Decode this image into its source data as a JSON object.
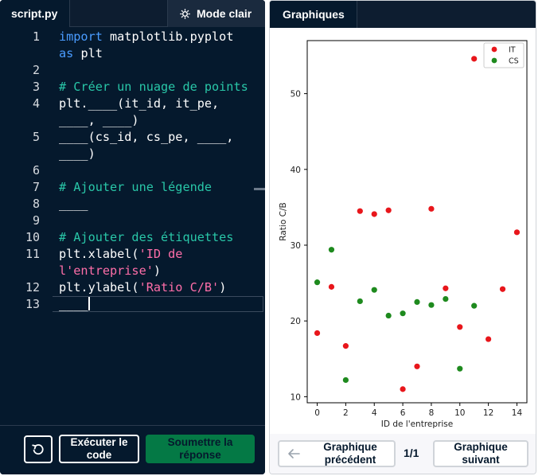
{
  "editor": {
    "file_tab": "script.py",
    "theme_toggle": "Mode clair",
    "lines": [
      {
        "num": "1",
        "parts": [
          {
            "t": "kw",
            "v": "import"
          },
          {
            "t": "tx",
            "v": " matplotlib.pyplot"
          }
        ]
      },
      {
        "num": "",
        "parts": [
          {
            "t": "kw",
            "v": "as"
          },
          {
            "t": "tx",
            "v": " plt"
          }
        ]
      },
      {
        "num": "2",
        "parts": []
      },
      {
        "num": "3",
        "parts": [
          {
            "t": "cm",
            "v": "# Créer un nuage de points"
          }
        ]
      },
      {
        "num": "4",
        "parts": [
          {
            "t": "tx",
            "v": "plt.____(it_id, it_pe,"
          }
        ]
      },
      {
        "num": "",
        "parts": [
          {
            "t": "tx",
            "v": "____, ____)"
          }
        ]
      },
      {
        "num": "5",
        "parts": [
          {
            "t": "tx",
            "v": "____(cs_id, cs_pe, ____,"
          }
        ]
      },
      {
        "num": "",
        "parts": [
          {
            "t": "tx",
            "v": "____)"
          }
        ]
      },
      {
        "num": "6",
        "parts": []
      },
      {
        "num": "7",
        "parts": [
          {
            "t": "cm",
            "v": "# Ajouter une légende"
          }
        ]
      },
      {
        "num": "8",
        "parts": [
          {
            "t": "tx",
            "v": "____"
          }
        ]
      },
      {
        "num": "9",
        "parts": []
      },
      {
        "num": "10",
        "parts": [
          {
            "t": "cm",
            "v": "# Ajouter des étiquettes"
          }
        ]
      },
      {
        "num": "11",
        "parts": [
          {
            "t": "tx",
            "v": "plt.xlabel("
          },
          {
            "t": "st",
            "v": "'ID de"
          }
        ]
      },
      {
        "num": "",
        "parts": [
          {
            "t": "st",
            "v": "l'entreprise'"
          },
          {
            "t": "tx",
            "v": ")"
          }
        ]
      },
      {
        "num": "12",
        "parts": [
          {
            "t": "tx",
            "v": "plt.ylabel("
          },
          {
            "t": "st",
            "v": "'Ratio C/B'"
          },
          {
            "t": "tx",
            "v": ")"
          }
        ]
      },
      {
        "num": "13",
        "parts": [
          {
            "t": "tx",
            "v": "____"
          }
        ]
      }
    ],
    "reset_icon": "reset-icon",
    "run_label": "Exécuter le code",
    "submit_label": "Soumettre la réponse"
  },
  "plots": {
    "tab_label": "Graphiques",
    "prev_label": "Graphique précédent",
    "page_counter": "1/1",
    "next_label": "Graphique suivant",
    "prev_icon": "arrow-left-icon"
  },
  "colors": {
    "editor_bg": "#05192d",
    "accent_green": "#03ef62",
    "it_color": "#e8161b",
    "cs_color": "#1e8a1e"
  },
  "chart_data": {
    "type": "scatter",
    "xlabel": "ID de l'entreprise",
    "ylabel": "Ratio C/B",
    "xlim": [
      -0.7,
      14.7
    ],
    "ylim": [
      9.2,
      57.0
    ],
    "xticks": [
      0,
      2,
      4,
      6,
      8,
      10,
      12,
      14
    ],
    "yticks": [
      10,
      20,
      30,
      40,
      50
    ],
    "grid": false,
    "legend_position": "top-right",
    "series": [
      {
        "name": "IT",
        "color": "#e8161b",
        "points": [
          [
            0,
            18.4
          ],
          [
            1,
            24.5
          ],
          [
            2,
            16.7
          ],
          [
            3,
            34.5
          ],
          [
            4,
            34.1
          ],
          [
            5,
            34.6
          ],
          [
            6,
            11.0
          ],
          [
            7,
            14.0
          ],
          [
            8,
            34.8
          ],
          [
            9,
            24.3
          ],
          [
            10,
            19.2
          ],
          [
            11,
            54.6
          ],
          [
            12,
            17.6
          ],
          [
            13,
            24.2
          ],
          [
            14,
            31.7
          ]
        ]
      },
      {
        "name": "CS",
        "color": "#1e8a1e",
        "points": [
          [
            0,
            25.1
          ],
          [
            1,
            29.4
          ],
          [
            2,
            12.2
          ],
          [
            3,
            22.6
          ],
          [
            4,
            24.1
          ],
          [
            5,
            20.7
          ],
          [
            6,
            21.0
          ],
          [
            7,
            22.5
          ],
          [
            8,
            22.1
          ],
          [
            9,
            22.9
          ],
          [
            10,
            13.7
          ],
          [
            11,
            22.0
          ]
        ]
      }
    ]
  }
}
